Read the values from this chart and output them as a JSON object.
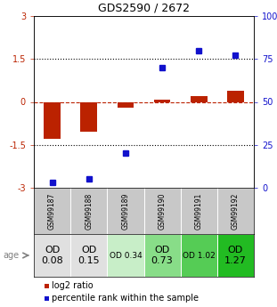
{
  "title": "GDS2590 / 2672",
  "samples": [
    "GSM99187",
    "GSM99188",
    "GSM99189",
    "GSM99190",
    "GSM99191",
    "GSM99192"
  ],
  "log2_ratio": [
    -1.3,
    -1.05,
    -0.2,
    0.07,
    0.2,
    0.4
  ],
  "percentile_rank": [
    3,
    5,
    20,
    70,
    80,
    77
  ],
  "ylim_left": [
    -3,
    3
  ],
  "ylim_right": [
    0,
    100
  ],
  "yticks_left": [
    -3,
    -1.5,
    0,
    1.5,
    3
  ],
  "ytick_labels_left": [
    "-3",
    "-1.5",
    "0",
    "1.5",
    "3"
  ],
  "yticks_right": [
    0,
    25,
    50,
    75,
    100
  ],
  "ytick_labels_right": [
    "0",
    "25",
    "50",
    "75",
    "100%"
  ],
  "bar_color_red": "#bb2200",
  "bar_color_blue": "#1111cc",
  "od_values": [
    "OD\n0.08",
    "OD\n0.15",
    "OD 0.34",
    "OD\n0.73",
    "OD 1.02",
    "OD\n1.27"
  ],
  "od_bg_colors": [
    "#e0e0e0",
    "#e0e0e0",
    "#c8eec8",
    "#88dd88",
    "#55cc55",
    "#22bb22"
  ],
  "od_fontsizes": [
    8,
    8,
    6.5,
    8,
    6.5,
    8
  ],
  "gsm_bg_color": "#c8c8c8",
  "legend_red": "log2 ratio",
  "legend_blue": "percentile rank within the sample",
  "age_label": "age"
}
